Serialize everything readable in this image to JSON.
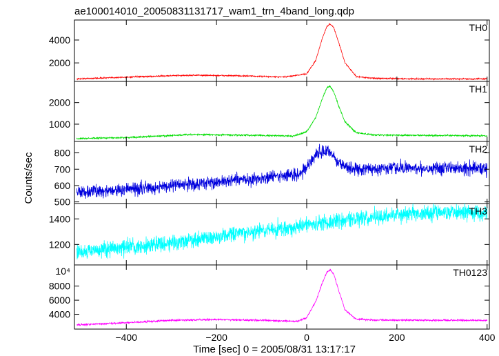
{
  "chart_data": {
    "type": "line",
    "title": "ae100014010_20050831131717_wam1_trn_4band_long.qdp",
    "xlabel": "Time [sec] 0 = 2005/08/31 13:17:17",
    "ylabel": "Counts/sec",
    "xlim": [
      -515,
      405
    ],
    "x_ticks": [
      -400,
      -200,
      0,
      200,
      400
    ],
    "x_tick_labels": [
      "−400",
      "−200",
      "0",
      "200",
      "400"
    ],
    "grid": false,
    "panels": [
      {
        "name": "TH0",
        "color": "#ff0000",
        "ylim": [
          380,
          5750
        ],
        "y_ticks": [
          2000,
          4000
        ],
        "y_tick_labels": [
          "2000",
          "4000"
        ],
        "noise": 40,
        "x": [
          -510,
          -400,
          -300,
          -250,
          -150,
          -50,
          0,
          20,
          35,
          45,
          52,
          60,
          70,
          85,
          110,
          150,
          250,
          400
        ],
        "y": [
          600,
          750,
          880,
          920,
          870,
          760,
          1050,
          2200,
          4200,
          5200,
          5400,
          5100,
          3900,
          2000,
          800,
          650,
          600,
          600
        ]
      },
      {
        "name": "TH1",
        "color": "#00dd00",
        "ylim": [
          200,
          2980
        ],
        "y_ticks": [
          1000,
          2000
        ],
        "y_tick_labels": [
          "1000",
          "2000"
        ],
        "noise": 25,
        "x": [
          -510,
          -400,
          -250,
          -100,
          -30,
          0,
          20,
          35,
          45,
          52,
          60,
          70,
          85,
          110,
          150,
          250,
          400
        ],
        "y": [
          330,
          380,
          520,
          480,
          450,
          650,
          1300,
          2200,
          2700,
          2750,
          2500,
          1900,
          1100,
          600,
          500,
          480,
          460
        ]
      },
      {
        "name": "TH2",
        "color": "#0000dd",
        "ylim": [
          490,
          870
        ],
        "y_ticks": [
          500,
          600,
          700,
          800
        ],
        "y_tick_labels": [
          "500",
          "600",
          "700",
          "800"
        ],
        "noise": 28,
        "x": [
          -510,
          -400,
          -300,
          -200,
          -100,
          -20,
          0,
          20,
          40,
          55,
          70,
          100,
          200,
          300,
          400
        ],
        "y": [
          560,
          575,
          600,
          620,
          645,
          670,
          710,
          790,
          810,
          800,
          740,
          700,
          705,
          710,
          705
        ]
      },
      {
        "name": "TH3",
        "color": "#00ffff",
        "ylim": [
          1040,
          1520
        ],
        "y_ticks": [
          1200,
          1400
        ],
        "y_tick_labels": [
          "1200",
          "1400"
        ],
        "noise": 45,
        "x": [
          -510,
          -400,
          -300,
          -200,
          -100,
          0,
          100,
          150,
          200,
          300,
          400
        ],
        "y": [
          1140,
          1175,
          1215,
          1260,
          1305,
          1350,
          1400,
          1410,
          1435,
          1455,
          1450
        ]
      },
      {
        "name": "TH0123",
        "color": "#ff00ff",
        "ylim": [
          1900,
          11000
        ],
        "y_ticks": [
          4000,
          6000,
          8000
        ],
        "y_tick_labels": [
          "4000",
          "6000",
          "8000"
        ],
        "y_top_label": "10⁴",
        "noise": 90,
        "x": [
          -510,
          -400,
          -300,
          -200,
          -100,
          -20,
          0,
          20,
          35,
          45,
          52,
          60,
          70,
          85,
          110,
          150,
          250,
          400
        ],
        "y": [
          2500,
          2800,
          3150,
          3250,
          3150,
          3000,
          3500,
          5800,
          8500,
          10000,
          10300,
          9700,
          7600,
          4600,
          3300,
          3200,
          3150,
          3150
        ]
      }
    ]
  }
}
